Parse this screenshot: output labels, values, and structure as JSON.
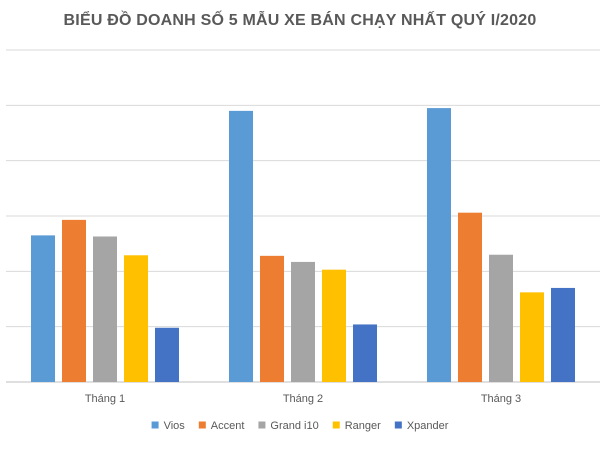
{
  "chart_data": {
    "type": "bar",
    "title": "BIỂU ĐỒ DOANH SỐ 5 MẪU XE BÁN CHẠY NHẤT QUÝ I/2020",
    "xlabel": "",
    "ylabel": "",
    "categories": [
      "Tháng 1",
      "Tháng 2",
      "Tháng 3"
    ],
    "ylim": [
      0,
      6000
    ],
    "grid": true,
    "legend_position": "bottom",
    "series": [
      {
        "name": "Vios",
        "color": "#5B9BD5",
        "values": [
          2650,
          4900,
          4950
        ]
      },
      {
        "name": "Accent",
        "color": "#ED7D31",
        "values": [
          2930,
          2280,
          3060
        ]
      },
      {
        "name": "Grand i10",
        "color": "#A5A5A5",
        "values": [
          2630,
          2170,
          2300
        ]
      },
      {
        "name": "Ranger",
        "color": "#FFC000",
        "values": [
          2290,
          2030,
          1620
        ]
      },
      {
        "name": "Xpander",
        "color": "#4472C4",
        "values": [
          980,
          1040,
          1700
        ]
      }
    ]
  }
}
